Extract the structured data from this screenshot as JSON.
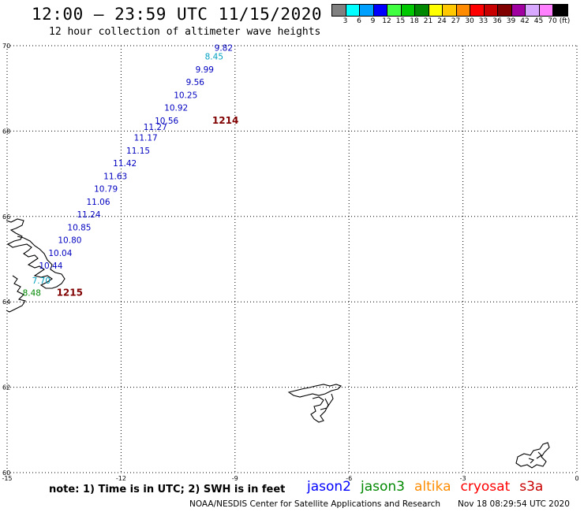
{
  "header": {
    "title": "12:00 — 23:59 UTC 11/15/2020",
    "subtitle": "12 hour collection of altimeter wave heights"
  },
  "legend": {
    "unit": "(ft)",
    "bins": [
      {
        "label": "3",
        "color": "#808080"
      },
      {
        "label": "6",
        "color": "#00ffff"
      },
      {
        "label": "9",
        "color": "#00a0ff"
      },
      {
        "label": "12",
        "color": "#0000ff"
      },
      {
        "label": "15",
        "color": "#40ff40"
      },
      {
        "label": "18",
        "color": "#00c800"
      },
      {
        "label": "21",
        "color": "#008800"
      },
      {
        "label": "24",
        "color": "#ffff00"
      },
      {
        "label": "27",
        "color": "#ffc800"
      },
      {
        "label": "30",
        "color": "#ff8c00"
      },
      {
        "label": "33",
        "color": "#ff0000"
      },
      {
        "label": "36",
        "color": "#c80000"
      },
      {
        "label": "39",
        "color": "#800000"
      },
      {
        "label": "42",
        "color": "#a000a0"
      },
      {
        "label": "45",
        "color": "#d8a8ff"
      },
      {
        "label": "70",
        "color": "#ff80ff"
      },
      {
        "label": "",
        "color": "#000000"
      }
    ]
  },
  "map": {
    "lat_range": [
      60,
      70
    ],
    "lon_range": [
      -15,
      0
    ],
    "lat_ticks": [
      "60",
      "62",
      "64",
      "66",
      "68",
      "70"
    ],
    "lon_ticks": [
      "-15",
      "-12",
      "-9",
      "-6",
      "-3",
      "0"
    ],
    "observations": [
      {
        "lat": 69.95,
        "lon": -9.3,
        "swh": "9.82",
        "color": "#0000c0"
      },
      {
        "lat": 69.75,
        "lon": -9.55,
        "swh": "8.45",
        "color": "#00a0c0"
      },
      {
        "lat": 69.45,
        "lon": -9.8,
        "swh": "9.99",
        "color": "#0000c0"
      },
      {
        "lat": 69.15,
        "lon": -10.05,
        "swh": "9.56",
        "color": "#0000c0"
      },
      {
        "lat": 68.85,
        "lon": -10.3,
        "swh": "10.25",
        "color": "#0000c0"
      },
      {
        "lat": 68.55,
        "lon": -10.55,
        "swh": "10.92",
        "color": "#0000c0"
      },
      {
        "lat": 68.25,
        "lon": -10.8,
        "swh": "10.56",
        "color": "#0000c0"
      },
      {
        "lat": 68.1,
        "lon": -11.1,
        "swh": "11.27",
        "color": "#0000c0"
      },
      {
        "lat": 67.85,
        "lon": -11.35,
        "swh": "11.17",
        "color": "#0000c0"
      },
      {
        "lat": 67.55,
        "lon": -11.55,
        "swh": "11.15",
        "color": "#0000c0"
      },
      {
        "lat": 67.25,
        "lon": -11.9,
        "swh": "11.42",
        "color": "#0000c0"
      },
      {
        "lat": 66.95,
        "lon": -12.15,
        "swh": "11.63",
        "color": "#0000c0"
      },
      {
        "lat": 66.65,
        "lon": -12.4,
        "swh": "10.79",
        "color": "#0000c0"
      },
      {
        "lat": 66.35,
        "lon": -12.6,
        "swh": "11.06",
        "color": "#0000c0"
      },
      {
        "lat": 66.05,
        "lon": -12.85,
        "swh": "11.24",
        "color": "#0000c0"
      },
      {
        "lat": 65.75,
        "lon": -13.1,
        "swh": "10.85",
        "color": "#0000c0"
      },
      {
        "lat": 65.45,
        "lon": -13.35,
        "swh": "10.80",
        "color": "#0000c0"
      },
      {
        "lat": 65.15,
        "lon": -13.6,
        "swh": "10.04",
        "color": "#0000c0"
      },
      {
        "lat": 64.85,
        "lon": -13.85,
        "swh": "10.44",
        "color": "#0000c0"
      },
      {
        "lat": 64.5,
        "lon": -14.1,
        "swh": "7.70",
        "color": "#00a0c0"
      },
      {
        "lat": 64.22,
        "lon": -14.35,
        "swh": "8.48",
        "color": "#008800"
      }
    ],
    "time_labels": [
      {
        "lat": 68.25,
        "lon": -9.6,
        "text": "1214",
        "color": "#800000"
      },
      {
        "lat": 64.22,
        "lon": -13.7,
        "text": "1215",
        "color": "#800000"
      }
    ]
  },
  "footer": {
    "note": "note:  1) Time is in UTC;  2) SWH is in feet",
    "satellites": [
      {
        "name": "jason2",
        "color": "#0000ff"
      },
      {
        "name": "jason3",
        "color": "#008800"
      },
      {
        "name": "altika",
        "color": "#ff8c00"
      },
      {
        "name": "cryosat",
        "color": "#ff0000"
      },
      {
        "name": "s3a",
        "color": "#c80000"
      }
    ],
    "credit": "NOAA/NESDIS Center for Satellite Applications and Research",
    "timestamp": "Nov 18 08:29:54 UTC 2020"
  }
}
